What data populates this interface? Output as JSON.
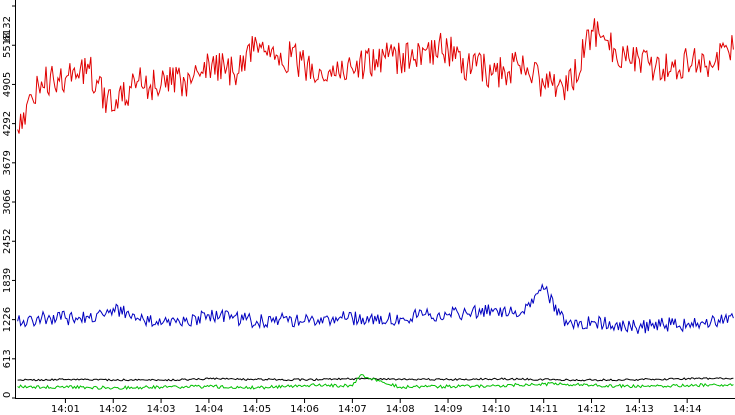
{
  "chart_data": {
    "type": "line",
    "title": "",
    "xlabel": "",
    "ylabel": "",
    "grid": false,
    "legend": "none",
    "xlim": [
      "13:59:58",
      "14:15:00"
    ],
    "ylim": [
      0,
      6132
    ],
    "y_ticks": [
      0,
      613,
      1226,
      1839,
      2452,
      3066,
      3679,
      4292,
      4905,
      5518,
      6132
    ],
    "y_tick_labels": [
      "0",
      "613",
      "1226",
      "1839",
      "2452",
      "3066",
      "3679",
      "4292",
      "4905",
      "5518",
      "6132"
    ],
    "x_ticks": [
      "14:01",
      "14:02",
      "14:03",
      "14:04",
      "14:05",
      "14:06",
      "14:07",
      "14:08",
      "14:09",
      "14:10",
      "14:11",
      "14:12",
      "14:13",
      "14:14"
    ],
    "series": [
      {
        "color": "#e00000",
        "x": [
          "14:00:00",
          "14:00:30",
          "14:01:00",
          "14:01:30",
          "14:02:00",
          "14:02:30",
          "14:03:00",
          "14:03:30",
          "14:04:00",
          "14:04:30",
          "14:05:00",
          "14:05:30",
          "14:06:00",
          "14:06:30",
          "14:07:00",
          "14:07:30",
          "14:08:00",
          "14:08:30",
          "14:09:00",
          "14:09:30",
          "14:10:00",
          "14:10:30",
          "14:11:00",
          "14:11:30",
          "14:12:00",
          "14:12:30",
          "14:13:00",
          "14:13:30",
          "14:14:00",
          "14:14:30",
          "14:14:58"
        ],
        "values": [
          4200,
          4950,
          5000,
          5150,
          4500,
          4950,
          4900,
          4950,
          5250,
          5100,
          5550,
          5400,
          5200,
          5100,
          5150,
          5300,
          5300,
          5450,
          5450,
          5150,
          5100,
          5200,
          4900,
          4800,
          5750,
          5450,
          5300,
          5150,
          5300,
          5200,
          5450
        ]
      },
      {
        "color": "#0000c0",
        "x": [
          "14:00:00",
          "14:00:30",
          "14:01:00",
          "14:01:30",
          "14:02:00",
          "14:02:30",
          "14:03:00",
          "14:03:30",
          "14:04:00",
          "14:04:30",
          "14:05:00",
          "14:05:30",
          "14:06:00",
          "14:06:30",
          "14:07:00",
          "14:07:30",
          "14:08:00",
          "14:08:30",
          "14:09:00",
          "14:09:30",
          "14:10:00",
          "14:10:30",
          "14:11:00",
          "14:11:30",
          "14:12:00",
          "14:12:30",
          "14:13:00",
          "14:13:30",
          "14:14:00",
          "14:14:30",
          "14:14:58"
        ],
        "values": [
          1200,
          1250,
          1250,
          1250,
          1400,
          1250,
          1150,
          1200,
          1300,
          1250,
          1200,
          1250,
          1200,
          1250,
          1250,
          1200,
          1250,
          1300,
          1300,
          1350,
          1400,
          1300,
          1700,
          1150,
          1200,
          1150,
          1100,
          1150,
          1150,
          1200,
          1250
        ]
      },
      {
        "color": "#000000",
        "x": [
          "14:00:00",
          "14:01:00",
          "14:02:00",
          "14:03:00",
          "14:04:00",
          "14:05:00",
          "14:06:00",
          "14:07:00",
          "14:08:00",
          "14:09:00",
          "14:10:00",
          "14:11:00",
          "14:12:00",
          "14:13:00",
          "14:14:00",
          "14:14:58"
        ],
        "values": [
          280,
          290,
          285,
          280,
          300,
          290,
          285,
          300,
          295,
          290,
          300,
          290,
          280,
          290,
          300,
          310
        ]
      },
      {
        "color": "#00c000",
        "x": [
          "14:00:00",
          "14:01:00",
          "14:02:00",
          "14:03:00",
          "14:04:00",
          "14:05:00",
          "14:06:00",
          "14:07:00",
          "14:07:10",
          "14:08:00",
          "14:09:00",
          "14:10:00",
          "14:11:00",
          "14:12:00",
          "14:13:00",
          "14:14:00",
          "14:14:58"
        ],
        "values": [
          180,
          170,
          160,
          170,
          180,
          160,
          200,
          190,
          360,
          170,
          180,
          190,
          220,
          200,
          180,
          200,
          210
        ]
      }
    ]
  }
}
